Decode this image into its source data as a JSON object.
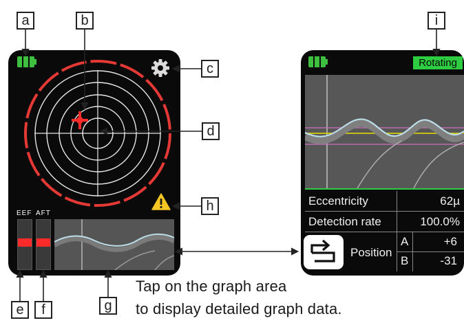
{
  "callouts": {
    "a": "a",
    "b": "b",
    "c": "c",
    "d": "d",
    "e": "e",
    "f": "f",
    "g": "g",
    "h": "h",
    "i": "i"
  },
  "left_screen": {
    "bar_labels": {
      "front": "EEF",
      "aft": "AFT"
    },
    "icons": [
      "battery-icon",
      "gear-icon",
      "warning-icon",
      "crosshair-icon"
    ],
    "colors": {
      "ring_red": "#e53935",
      "marker_red": "#ff2a2a",
      "battery_green": "#3fbf3f",
      "warning_yellow": "#f3c623"
    }
  },
  "right_screen": {
    "status_badge": "Rotating",
    "rows": [
      {
        "label": "Eccentricity",
        "value": "62µ"
      },
      {
        "label": "Detection rate",
        "value": "100.0%"
      }
    ],
    "position": {
      "label": "Position",
      "a_label": "A",
      "a_value": "+6",
      "b_label": "B",
      "b_value": "-31"
    },
    "icons": [
      "battery-icon",
      "back-icon"
    ],
    "colors": {
      "badge_green": "#2ecc40",
      "line_yellow": "#e8e000",
      "line_pink": "#d070c0",
      "wave_light": "#bcdde8"
    }
  },
  "caption": {
    "line1": "Tap on the graph area",
    "line2": "to display detailed graph data."
  }
}
